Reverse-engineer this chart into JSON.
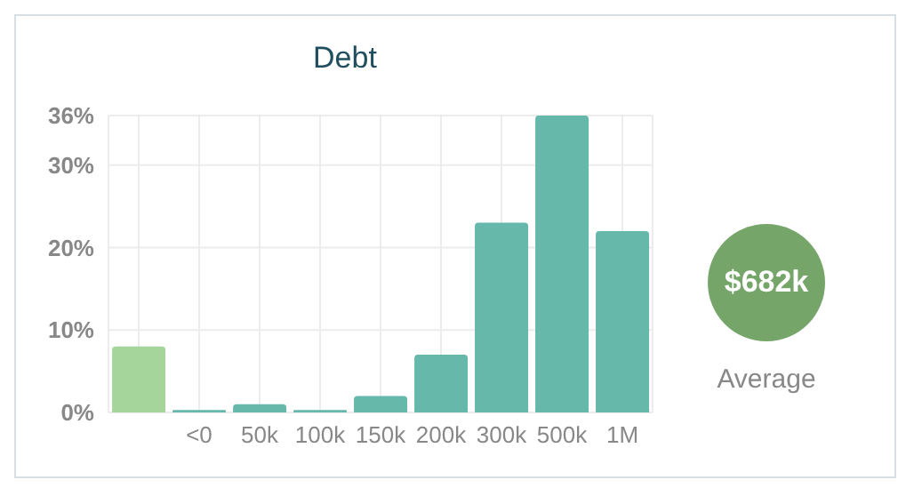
{
  "chart_data": {
    "type": "bar",
    "title": "Debt",
    "categories": [
      null,
      "<0",
      "50k",
      "100k",
      "150k",
      "200k",
      "300k",
      "500k",
      "1M"
    ],
    "values": [
      8,
      0.3,
      1,
      0.3,
      2,
      7,
      23,
      36,
      22
    ],
    "colors": [
      "#a5d59a",
      "#66b8ab",
      "#66b8ab",
      "#66b8ab",
      "#66b8ab",
      "#66b8ab",
      "#66b8ab",
      "#66b8ab",
      "#66b8ab"
    ],
    "ylim": [
      0,
      36
    ],
    "yticks": [
      {
        "value": 0,
        "label": "0%"
      },
      {
        "value": 10,
        "label": "10%"
      },
      {
        "value": 20,
        "label": "20%"
      },
      {
        "value": 30,
        "label": "30%"
      },
      {
        "value": 36,
        "label": "36%"
      }
    ],
    "grid": true,
    "annotations": [
      "$682k",
      "Average"
    ]
  }
}
